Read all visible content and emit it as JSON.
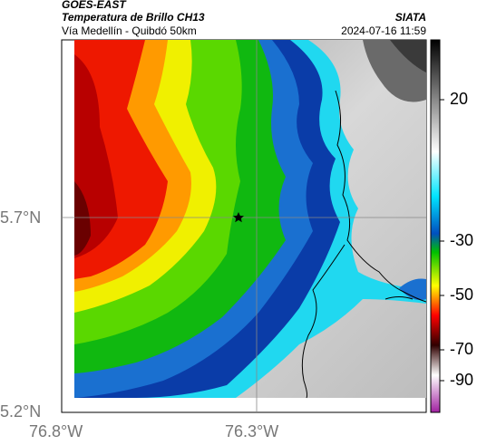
{
  "header": {
    "satellite": "GOES-EAST",
    "title": "Temperatura de Brillo CH13",
    "subtitle": "Vía Medellín - Quibdó 50km",
    "org": "SIATA",
    "timestamp": "2024-07-16 11:59"
  },
  "map": {
    "lat_ticks": [
      "5.7°N",
      "5.2°N"
    ],
    "lon_ticks": [
      "76.8°W",
      "76.3°W"
    ],
    "lat_range": [
      5.2,
      6.2
    ],
    "lon_range": [
      -76.8,
      -75.8
    ],
    "gridlines": true,
    "marker": {
      "symbol": "star",
      "lat": 5.7,
      "lon": -76.3
    }
  },
  "colorbar": {
    "ticks": [
      "20",
      "-30",
      "-50",
      "-70",
      "-90"
    ],
    "stops": [
      {
        "value": 30,
        "color": "#000000"
      },
      {
        "value": 0,
        "color": "#ffffff"
      },
      {
        "value": -20,
        "color": "#00e5ff"
      },
      {
        "value": -30,
        "color": "#0050c0"
      },
      {
        "value": -40,
        "color": "#00c000"
      },
      {
        "value": -50,
        "color": "#ffff00"
      },
      {
        "value": -60,
        "color": "#ff0000"
      },
      {
        "value": -70,
        "color": "#300000"
      },
      {
        "value": -80,
        "color": "#ffffff"
      },
      {
        "value": -90,
        "color": "#a020a0"
      }
    ]
  },
  "colors": {
    "cold_tops": "#ff0000",
    "convection": "#00c000",
    "anvil_edge": "#0030a0",
    "clear_sky": "#c8c8c8",
    "ocean": "#4d4d4d"
  }
}
